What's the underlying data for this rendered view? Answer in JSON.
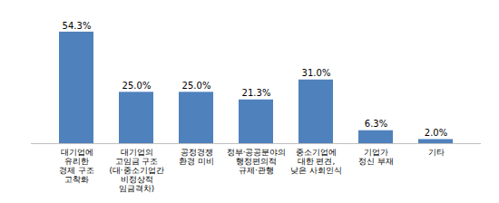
{
  "chart_data": {
    "type": "bar",
    "categories": [
      "대기업에\n유리한\n경제 구조\n고착화",
      "대기업의\n고임금 구조\n(대·중소기업간\n비정상적\n임금격차)",
      "공정경쟁\n환경 미비",
      "정부·공공분야의\n행정편의적\n규제·관행",
      "중소기업에\n대한 편견,\n낮은 사회인식",
      "기업가\n정신 부재",
      "기타"
    ],
    "values": [
      54.3,
      25.0,
      25.0,
      21.3,
      31.0,
      6.3,
      2.0
    ],
    "value_labels": [
      "54.3%",
      "25.0%",
      "25.0%",
      "21.3%",
      "31.0%",
      "6.3%",
      "2.0%"
    ],
    "color": "#4f81bd",
    "ylim": [
      0,
      60
    ],
    "data_labels": true,
    "tick_labels": "x",
    "grid": false
  }
}
